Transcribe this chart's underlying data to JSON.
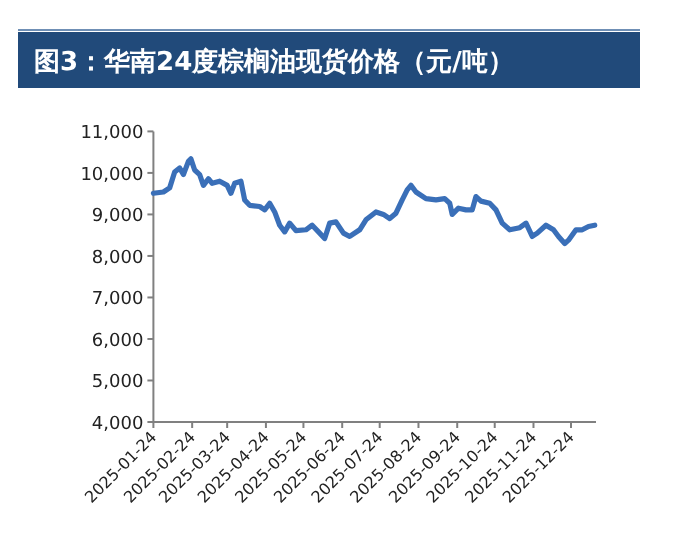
{
  "chart_data": {
    "type": "line",
    "title": "图3：华南24度棕榈油现货价格（元/吨）",
    "x": [
      "2025-01-24",
      "2025-02-01",
      "2025-02-06",
      "2025-02-10",
      "2025-02-14",
      "2025-02-17",
      "2025-02-21",
      "2025-02-23",
      "2025-02-26",
      "2025-03-02",
      "2025-03-05",
      "2025-03-09",
      "2025-03-12",
      "2025-03-18",
      "2025-03-24",
      "2025-03-27",
      "2025-03-30",
      "2025-04-04",
      "2025-04-07",
      "2025-04-11",
      "2025-04-19",
      "2025-04-23",
      "2025-04-27",
      "2025-05-01",
      "2025-05-05",
      "2025-05-09",
      "2025-05-13",
      "2025-05-18",
      "2025-05-26",
      "2025-05-31",
      "2025-06-06",
      "2025-06-10",
      "2025-06-14",
      "2025-06-19",
      "2025-06-25",
      "2025-06-30",
      "2025-07-08",
      "2025-07-13",
      "2025-07-21",
      "2025-07-27",
      "2025-08-01",
      "2025-08-06",
      "2025-08-11",
      "2025-08-15",
      "2025-08-18",
      "2025-08-22",
      "2025-08-30",
      "2025-09-07",
      "2025-09-14",
      "2025-09-18",
      "2025-09-20",
      "2025-09-25",
      "2025-10-01",
      "2025-10-06",
      "2025-10-09",
      "2025-10-13",
      "2025-10-20",
      "2025-10-25",
      "2025-10-30",
      "2025-11-05",
      "2025-11-13",
      "2025-11-18",
      "2025-11-23",
      "2025-11-27",
      "2025-12-04",
      "2025-12-10",
      "2025-12-14",
      "2025-12-19",
      "2025-12-22",
      "2025-12-28",
      "2026-01-02",
      "2026-01-07",
      "2026-01-12"
    ],
    "series": [
      {
        "color": "#3a6fb8",
        "values": [
          9510,
          9540,
          9640,
          10020,
          10120,
          9960,
          10280,
          10340,
          10070,
          9960,
          9700,
          9860,
          9750,
          9800,
          9700,
          9510,
          9750,
          9800,
          9350,
          9220,
          9190,
          9110,
          9270,
          9060,
          8740,
          8580,
          8790,
          8610,
          8630,
          8740,
          8550,
          8420,
          8790,
          8820,
          8550,
          8470,
          8630,
          8870,
          9060,
          9000,
          8900,
          9030,
          9350,
          9590,
          9700,
          9540,
          9380,
          9350,
          9380,
          9270,
          9000,
          9150,
          9110,
          9110,
          9430,
          9320,
          9270,
          9110,
          8790,
          8630,
          8680,
          8790,
          8470,
          8550,
          8740,
          8630,
          8470,
          8300,
          8380,
          8630,
          8630,
          8710,
          8740
        ]
      }
    ],
    "xlim": [
      "2025-01-24",
      "2026-01-13"
    ],
    "xticks": [
      "2025-01-24",
      "2025-02-24",
      "2025-03-24",
      "2025-04-24",
      "2025-05-24",
      "2025-06-24",
      "2025-07-24",
      "2025-08-24",
      "2025-09-24",
      "2025-10-24",
      "2025-11-24",
      "2025-12-24"
    ],
    "ylim": [
      4000,
      11000
    ],
    "yticks": [
      {
        "value": 4000,
        "label": "4,000"
      },
      {
        "value": 5000,
        "label": "5,000"
      },
      {
        "value": 6000,
        "label": "6,000"
      },
      {
        "value": 7000,
        "label": "7,000"
      },
      {
        "value": 8000,
        "label": "8,000"
      },
      {
        "value": 9000,
        "label": "9,000"
      },
      {
        "value": 10000,
        "label": "10,000"
      },
      {
        "value": 11000,
        "label": "11,000"
      }
    ],
    "grid": false,
    "marker": "none",
    "line_style": "solid"
  }
}
